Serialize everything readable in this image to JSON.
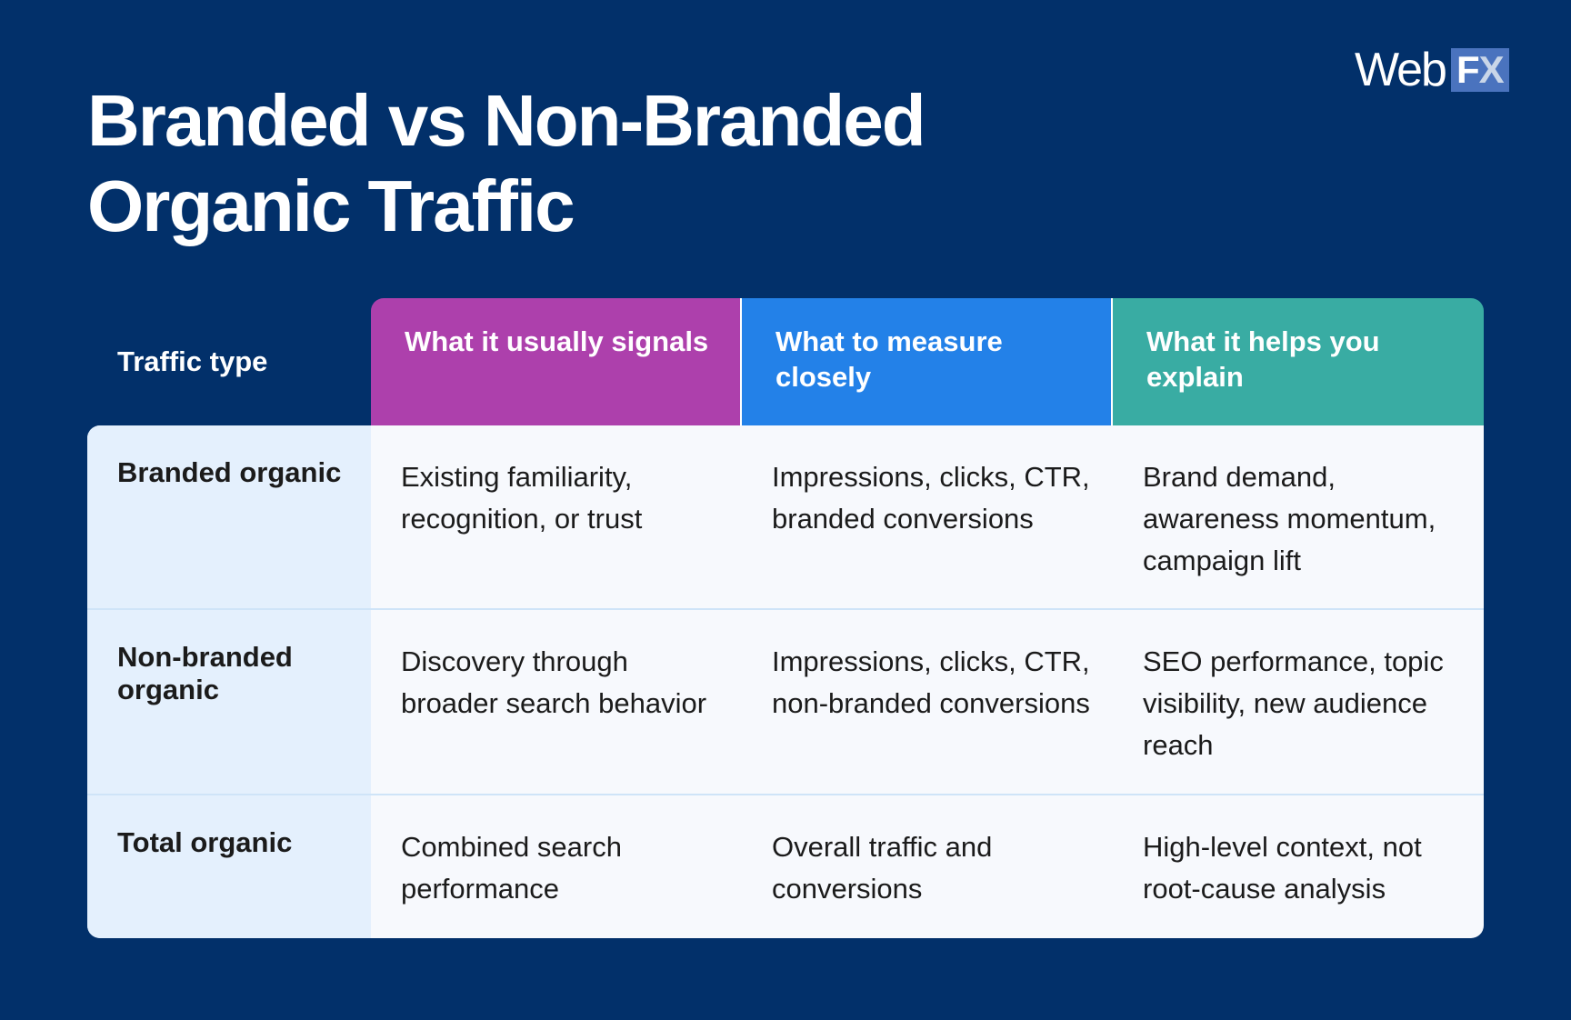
{
  "logo": {
    "web": "Web",
    "f": "F",
    "x": "X"
  },
  "title": "Branded vs Non-Branded Organic Traffic",
  "colors": {
    "background": "#02306A",
    "col1": "#AD40AC",
    "col2": "#2381E8",
    "col3": "#39ACA3",
    "row_label_bg": "#E4F0FD",
    "cell_bg": "#F7F9FD"
  },
  "table": {
    "header_label": "Traffic type",
    "columns": [
      "What it usually signals",
      "What to measure closely",
      "What it helps you explain"
    ],
    "rows": [
      {
        "label": "Branded organic",
        "cells": [
          "Existing familiarity, recognition, or trust",
          "Impressions, clicks, CTR, branded conversions",
          "Brand demand, awareness momentum, campaign lift"
        ]
      },
      {
        "label": "Non-branded organic",
        "cells": [
          "Discovery through broader search behavior",
          "Impressions, clicks, CTR, non-branded conversions",
          "SEO performance, topic visibility, new audience reach"
        ]
      },
      {
        "label": "Total organic",
        "cells": [
          "Combined search performance",
          "Overall traffic and conversions",
          "High-level context, not root-cause analysis"
        ]
      }
    ]
  }
}
